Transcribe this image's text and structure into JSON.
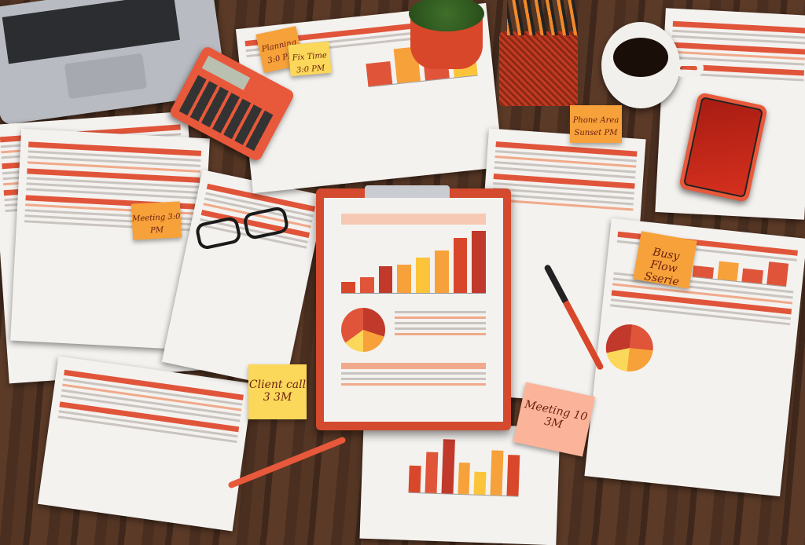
{
  "colors": {
    "wood": "#553624",
    "accent": "#e0553a",
    "note_orange": "#f7a13a",
    "note_yellow": "#fbd75a",
    "note_pink": "#fbb49a"
  },
  "sticky_notes": [
    {
      "text": "Planning 3:0 PM",
      "color": "#f7a13a"
    },
    {
      "text": "Fix Time 3:0 PM",
      "color": "#fbd75a"
    },
    {
      "text": "Meeting 3:0 PM",
      "color": "#f7a13a"
    },
    {
      "text": "Client call 3 3M",
      "color": "#fbd75a"
    },
    {
      "text": "Meeting 10 3M",
      "color": "#fbb49a"
    },
    {
      "text": "Phone Area Sunset PM",
      "color": "#f7a13a"
    },
    {
      "text": "Busy Flow Sserie",
      "color": "#f7a13a"
    }
  ],
  "clipboard_bars": [
    12,
    18,
    30,
    32,
    40,
    48,
    62,
    70
  ],
  "bottom_bars": [
    30,
    45,
    60,
    35,
    25,
    50,
    45
  ],
  "objects": [
    "laptop",
    "calculator",
    "plant",
    "pen-cup",
    "coffee-mug",
    "smartphone",
    "glasses",
    "pen",
    "pencil"
  ]
}
